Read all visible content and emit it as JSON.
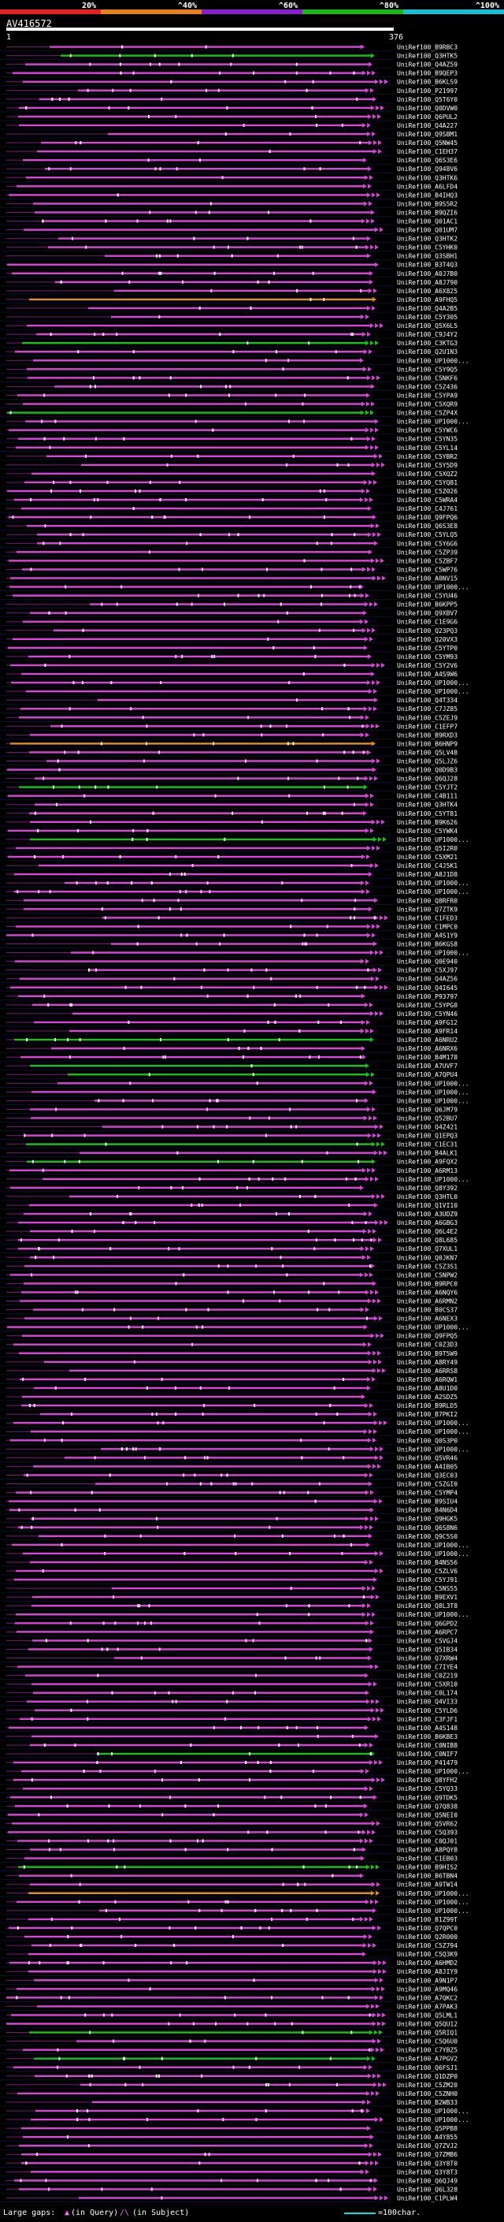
{
  "query": {
    "name": "AV416572",
    "start": "1",
    "end": "376"
  },
  "scale": {
    "labels": [
      "20%",
      "^40%",
      "^60%",
      "^80%",
      "^100%"
    ],
    "colors": [
      "#e52222",
      "#e5801a",
      "#8a1ecc",
      "#18b818",
      "#16bfd4"
    ]
  },
  "colors": {
    "background": "#000000",
    "hit": "#dd44dd",
    "gap_line": "#7a1a7a",
    "query_bar": "#ffffff",
    "hit_green": "#19c219",
    "hit_orange": "#e5901a",
    "sep": "#1a1a66"
  },
  "legend": {
    "large_gaps": "Large gaps:",
    "in_query_mark": "▲",
    "in_query": "(in Query)",
    "in_subject_mark": "/\\",
    "in_subject": "(in Subject)",
    "bar_label": "=100char."
  },
  "hits": [
    "UniRef100_B9RBC3",
    "UniRef100_Q3HTK5",
    "UniRef100_Q4AZ59",
    "UniRef100_B9QEP3",
    "UniRef100_B6KLS9",
    "UniRef100_P21997",
    "UniRef100_Q5T6Y0",
    "UniRef100_Q0DVW0",
    "UniRef100_Q6PUL2",
    "UniRef100_Q4A227",
    "UniRef100_Q9SBM1",
    "UniRef100_Q5NW45",
    "UniRef100_C1EH37",
    "UniRef100_Q6S3E6",
    "UniRef100_Q948V6",
    "UniRef100_Q3HTK6",
    "UniRef100_A6LFD4",
    "UniRef100_B4IHQ3",
    "UniRef100_B9S5R2",
    "UniRef100_B9QZI6",
    "UniRef100_Q01AC1",
    "UniRef100_Q01UM7",
    "UniRef100_Q3HTK2",
    "UniRef100_C5YHK0",
    "UniRef100_Q3SBH1",
    "UniRef100_B3T4Q3",
    "UniRef100_A0J7B0",
    "UniRef100_A8J790",
    "UniRef100_A6X825",
    "UniRef100_A9FHQ5",
    "UniRef100_Q4A2B5",
    "UniRef100_C5Y305",
    "UniRef100_Q5X6L5",
    "UniRef100_C9J4Y2",
    "UniRef100_C3KTG3",
    "UniRef100_Q2U1N3",
    "UniRef100_UP1000...",
    "UniRef100_C5Y9Q5",
    "UniRef100_C5NKF6",
    "UniRef100_C5Z436",
    "UniRef100_C5YPA9",
    "UniRef100_C5XQR9",
    "UniRef100_C5ZP4X",
    "UniRef100_UP1000...",
    "UniRef100_C5YWC6",
    "UniRef100_C5YN35",
    "UniRef100_C5YL14",
    "UniRef100_C5YBR2",
    "UniRef100_C5Y5D9",
    "UniRef100_C5XQZ2",
    "UniRef100_C5YQ81",
    "UniRef100_C5Z026",
    "UniRef100_C5WRA4",
    "UniRef100_C4J761",
    "UniRef100_Q9FPQ6",
    "UniRef100_Q6S3E8",
    "UniRef100_C5YLQ5",
    "UniRef100_C5Y6G6",
    "UniRef100_C5ZP39",
    "UniRef100_C5ZBF7",
    "UniRef100_C5WP76",
    "UniRef100_A0NV15",
    "UniRef100_UP1000...",
    "UniRef100_C5YU46",
    "UniRef100_B6KPP5",
    "UniRef100_Q9XBV7",
    "UniRef100_C1E9G6",
    "UniRef100_Q23PQ3",
    "UniRef100_Q20VX3",
    "UniRef100_C5YTP0",
    "UniRef100_C5YM93",
    "UniRef100_C5Y2V6",
    "UniRef100_A4S9W6",
    "UniRef100_UP1000...",
    "UniRef100_UP1000...",
    "UniRef100_Q4T334",
    "UniRef100_C7JZ85",
    "UniRef100_C5ZEJ9",
    "UniRef100_C1EFP7",
    "UniRef100_B9RXD3",
    "UniRef100_B6HNP9",
    "UniRef100_Q5LV48",
    "UniRef100_Q5LJZ6",
    "UniRef100_Q0D9B3",
    "UniRef100_Q6QJ28",
    "UniRef100_C5YJT2",
    "UniRef100_C4B111",
    "UniRef100_Q3HTK4",
    "UniRef100_C5YT81",
    "UniRef100_B9K626",
    "UniRef100_C5YWK4",
    "UniRef100_UP1000...",
    "UniRef100_Q5I2R0",
    "UniRef100_C5XM21",
    "UniRef100_C4J5K1",
    "UniRef100_A8J1D8",
    "UniRef100_UP1000...",
    "UniRef100_UP1000...",
    "UniRef100_Q8RFR0",
    "UniRef100_Q7ZTK9",
    "UniRef100_C1FED3",
    "UniRef100_C1MPC0",
    "UniRef100_A4S1Y9",
    "UniRef100_B6KGS8",
    "UniRef100_UP1000...",
    "UniRef100_Q0E940",
    "UniRef100_C5XJ97",
    "UniRef100_Q4AZ56",
    "UniRef100_Q4I645",
    "UniRef100_P93797",
    "UniRef100_C5YPG0",
    "UniRef100_C5YN46",
    "UniRef100_A9FG12",
    "UniRef100_A9FR14",
    "UniRef100_A6NRU2",
    "UniRef100_A6NRX6",
    "UniRef100_B4M178",
    "UniRef100_A7UVF7",
    "UniRef100_A7QPU4",
    "UniRef100_UP1000...",
    "UniRef100_UP1000...",
    "UniRef100_UP1000...",
    "UniRef100_Q6JM79",
    "UniRef100_Q52BU7",
    "UniRef100_Q4Z421",
    "UniRef100_Q1EPQ3",
    "UniRef100_C1EC31",
    "UniRef100_B4ALK1",
    "UniRef100_A9FQX2",
    "UniRef100_A6RM13",
    "UniRef100_UP1000...",
    "UniRef100_Q8Y392",
    "UniRef100_Q3HTL0",
    "UniRef100_Q1VI10",
    "UniRef100_A3UDZ9",
    "UniRef100_A6GBG3",
    "UniRef100_Q6L4E2",
    "UniRef100_Q8L685",
    "UniRef100_Q7XUL1",
    "UniRef100_Q0JKN7",
    "UniRef100_C5Z3S1",
    "UniRef100_C5NPW2",
    "UniRef100_B9RPC0",
    "UniRef100_A6NQY6",
    "UniRef100_A6RMN2",
    "UniRef100_B0CS37",
    "UniRef100_A6NEX3",
    "UniRef100_UP1000...",
    "UniRef100_Q9FPQ5",
    "UniRef100_C0Z3D3",
    "UniRef100_B9T5W9",
    "UniRef100_A8RY49",
    "UniRef100_A6RRS8",
    "UniRef100_A6RQW1",
    "UniRef100_A8U1D0",
    "UniRef100_A2SDZ5",
    "UniRef100_B9RLD5",
    "UniRef100_B7PKI2",
    "UniRef100_UP1000...",
    "UniRef100_UP1000...",
    "UniRef100_Q0S3P0",
    "UniRef100_UP1000...",
    "UniRef100_Q5VR46",
    "UniRef100_A4IB05",
    "UniRef100_Q3EC03",
    "UniRef100_C5ZGI0",
    "UniRef100_C5YMP4",
    "UniRef100_B9SIU4",
    "UniRef100_B4N6D4",
    "UniRef100_Q9HGK5",
    "UniRef100_Q6S8N6",
    "UniRef100_Q9C5S0",
    "UniRef100_UP1000...",
    "UniRef100_UP1000...",
    "UniRef100_B4NS56",
    "UniRef100_C5ZLV6",
    "UniRef100_C5YJ91",
    "UniRef100_C5NS55",
    "UniRef100_B9EXV1",
    "UniRef100_Q8L3T8",
    "UniRef100_UP1000...",
    "UniRef100_Q6GPD2",
    "UniRef100_A6RPC7",
    "UniRef100_C5VGJ4",
    "UniRef100_Q5IB34",
    "UniRef100_Q7XRW4",
    "UniRef100_C7IYE4",
    "UniRef100_C0Z219",
    "UniRef100_C5XR10",
    "UniRef100_C0L174",
    "UniRef100_Q4VI33",
    "UniRef100_C5YLD6",
    "UniRef100_C3FJF1",
    "UniRef100_A4S148",
    "UniRef100_B6KBE3",
    "UniRef100_C0NIB8",
    "UniRef100_C0NIF7",
    "UniRef100_P41479",
    "UniRef100_UP1000...",
    "UniRef100_Q8YFH2",
    "UniRef100_C5YQ33",
    "UniRef100_Q9TDK5",
    "UniRef100_Q7Q838",
    "UniRef100_Q5NEI0",
    "UniRef100_Q5VR62",
    "UniRef100_C5Q393",
    "UniRef100_C0QJ01",
    "UniRef100_A8PQY8",
    "UniRef100_C1EB03",
    "UniRef100_B9HIS2",
    "UniRef100_B6TBN4",
    "UniRef100_A9TW14",
    "UniRef100_UP1000...",
    "UniRef100_UP1000...",
    "UniRef100_UP1000...",
    "UniRef100_B1Z99T",
    "UniRef100_Q7QPC0",
    "UniRef100_Q2R000",
    "UniRef100_C5Z794",
    "UniRef100_C5Q3K9",
    "UniRef100_A6HMD2",
    "UniRef100_A8JIY9",
    "UniRef100_A9N1P7",
    "UniRef100_A9MQ46",
    "UniRef100_A7QKC2",
    "UniRef100_A7PAK3",
    "UniRef100_Q5LML1",
    "UniRef100_Q5QU12",
    "UniRef100_Q5RIQ1",
    "UniRef100_C5Q6U0",
    "UniRef100_C7YBZ5",
    "UniRef100_A7PGV2",
    "UniRef100_Q6FSJ1",
    "UniRef100_Q1DZP0",
    "UniRef100_C5ZM20",
    "UniRef100_C5ZNH0",
    "UniRef100_B2WB33",
    "UniRef100_UP1000...",
    "UniRef100_UP1000...",
    "UniRef100_Q5PPB8",
    "UniRef100_A4Y855",
    "UniRef100_Q7ZVJ2",
    "UniRef100_Q7ZMB6",
    "UniRef100_Q3Y8T0",
    "UniRef100_Q3Y8T3",
    "UniRef100_Q6QJ49",
    "UniRef100_Q6L328",
    "UniRef100_C1PLW4"
  ]
}
